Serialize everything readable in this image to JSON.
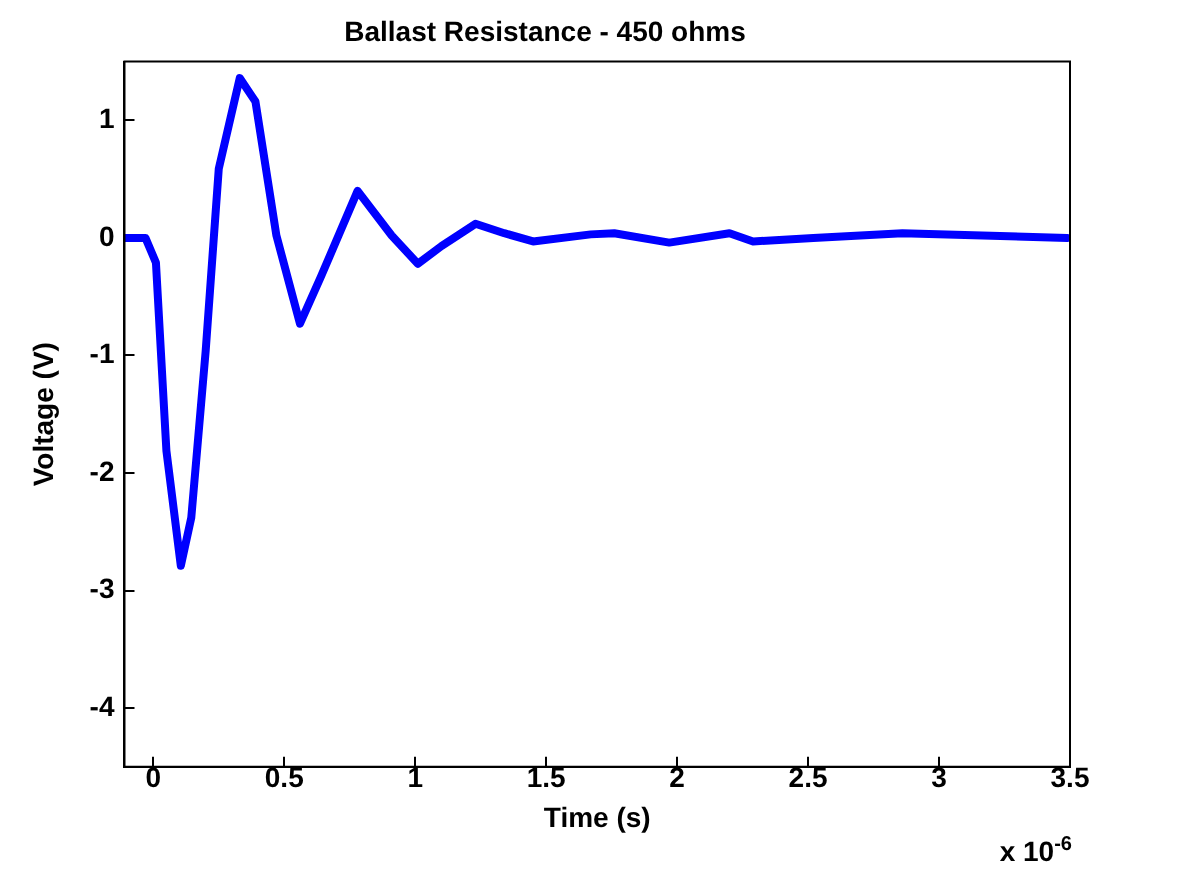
{
  "chart_data": {
    "type": "line",
    "title": "Ballast Resistance - 450 ohms",
    "xlabel": "Time (s)",
    "ylabel": "Voltage (V)",
    "annotations": [
      "x 10$^{-6}$"
    ],
    "xlim": [
      -0.11,
      3.5
    ],
    "xticks": [
      0,
      0.5,
      1,
      1.5,
      2,
      2.5,
      3,
      3.5
    ],
    "ylim": [
      -4.5,
      1.5
    ],
    "yticks": [
      -4,
      -3,
      -2,
      -1,
      0,
      1
    ],
    "grid": false,
    "legend": false,
    "marker": "none",
    "line_style": "solid",
    "series": [
      {
        "color": "#0000ff",
        "x": [
          -0.11,
          -0.03,
          0.01,
          0.05,
          0.105,
          0.145,
          0.2,
          0.25,
          0.33,
          0.39,
          0.47,
          0.56,
          0.64,
          0.78,
          0.91,
          1.01,
          1.1,
          1.23,
          1.34,
          1.45,
          1.67,
          1.76,
          1.97,
          2.2,
          2.29,
          2.52,
          2.86,
          3.49
        ],
        "values": [
          0,
          0,
          -0.21,
          -1.81,
          -2.79,
          -2.38,
          -0.96,
          0.59,
          1.36,
          1.16,
          0.02,
          -0.73,
          -0.33,
          0.4,
          0.02,
          -0.22,
          -0.07,
          0.12,
          0.04,
          -0.03,
          0.03,
          0.04,
          -0.04,
          0.04,
          -0.03,
          0,
          0.04,
          0
        ]
      }
    ]
  }
}
